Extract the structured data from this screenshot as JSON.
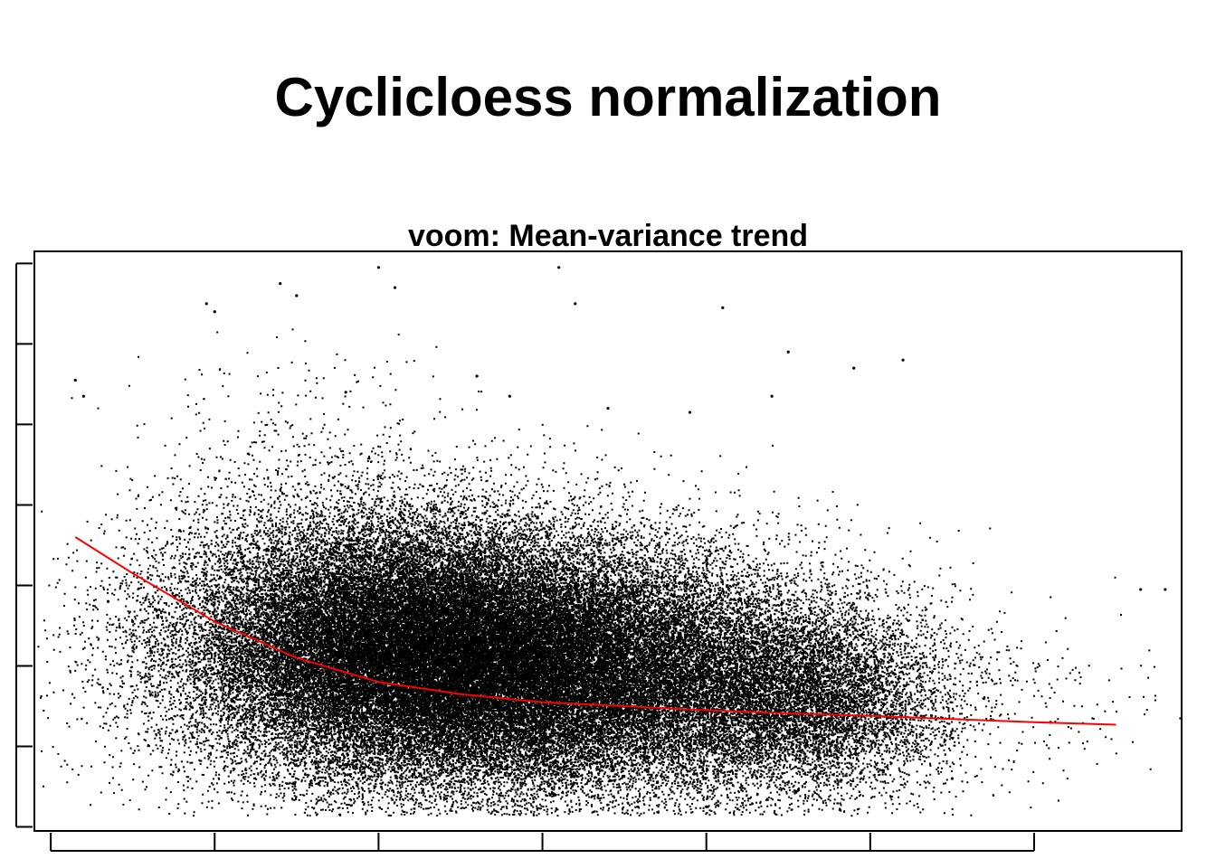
{
  "page_title": "Cyclicloess normalization",
  "chart_data": {
    "type": "scatter",
    "title": "voom: Mean-variance trend",
    "xlabel": "",
    "ylabel": "",
    "x_ticks": [
      "",
      "",
      "",
      "",
      "",
      "",
      ""
    ],
    "y_ticks": [
      "",
      "",
      "",
      "",
      "",
      "",
      "",
      ""
    ],
    "xlim": [
      -0.1,
      6.9
    ],
    "ylim": [
      -0.05,
      7.15
    ],
    "grid": false,
    "legend": "none",
    "point_color": "#000000",
    "series": [
      {
        "type": "scatter",
        "clusters": [
          {
            "center_x": 2.2,
            "center_y": 2.2,
            "spread_x": 0.7,
            "spread_y": 0.8,
            "count": 42000
          },
          {
            "center_x": 3.3,
            "center_y": 1.9,
            "spread_x": 0.75,
            "spread_y": 0.75,
            "count": 26000
          },
          {
            "center_x": 4.6,
            "center_y": 1.6,
            "spread_x": 0.45,
            "spread_y": 0.6,
            "count": 7000
          },
          {
            "center_x": 1.5,
            "center_y": 3.2,
            "spread_x": 0.55,
            "spread_y": 1.3,
            "count": 1600
          },
          {
            "center_x": 5.8,
            "center_y": 1.5,
            "spread_x": 0.55,
            "spread_y": 0.5,
            "count": 200
          }
        ],
        "outliers": [
          [
            0.15,
            5.55
          ],
          [
            0.2,
            5.35
          ],
          [
            0.95,
            6.5
          ],
          [
            1.0,
            6.4
          ],
          [
            1.4,
            6.75
          ],
          [
            1.5,
            6.6
          ],
          [
            2.0,
            6.95
          ],
          [
            2.1,
            6.7
          ],
          [
            3.1,
            6.95
          ],
          [
            3.2,
            6.5
          ],
          [
            4.1,
            6.45
          ],
          [
            4.5,
            5.9
          ],
          [
            4.9,
            5.7
          ],
          [
            5.2,
            5.8
          ],
          [
            3.4,
            5.2
          ],
          [
            2.8,
            5.35
          ],
          [
            6.8,
            2.95
          ],
          [
            6.65,
            2.95
          ],
          [
            0.5,
            2.55
          ],
          [
            0.35,
            2.8
          ],
          [
            0.6,
            2.3
          ],
          [
            5.5,
            0.6
          ],
          [
            6.1,
            1.3
          ],
          [
            4.0,
            0.25
          ],
          [
            2.6,
            5.6
          ],
          [
            1.8,
            5.4
          ],
          [
            4.4,
            5.35
          ],
          [
            3.9,
            5.15
          ]
        ]
      },
      {
        "type": "line",
        "color": "#ff0000",
        "x": [
          0.15,
          0.5,
          1.0,
          1.5,
          2.0,
          2.5,
          3.0,
          3.5,
          4.0,
          4.5,
          5.0,
          5.5,
          6.0,
          6.5
        ],
        "y": [
          3.6,
          3.15,
          2.55,
          2.1,
          1.8,
          1.65,
          1.55,
          1.5,
          1.45,
          1.41,
          1.38,
          1.34,
          1.3,
          1.27
        ]
      }
    ]
  }
}
